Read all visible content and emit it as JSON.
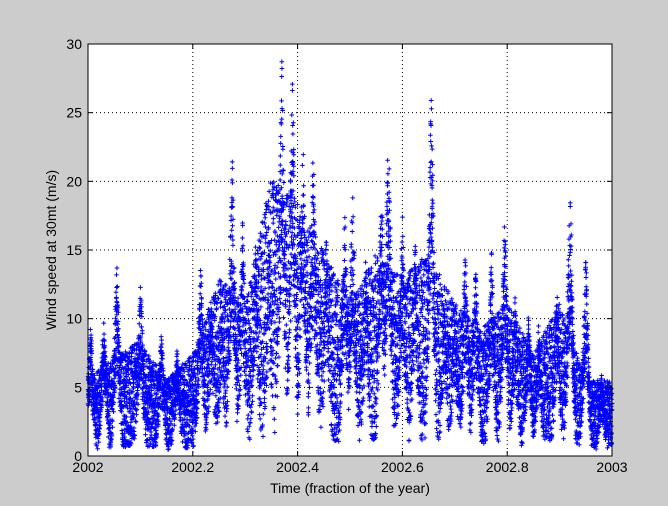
{
  "window": {
    "background": "#cccccc"
  },
  "chart_data": {
    "type": "scatter",
    "title": "",
    "xlabel": "Time (fraction of the year)",
    "ylabel": "Wind speed at 30mt (m/s)",
    "xlim": [
      2002,
      2003
    ],
    "ylim": [
      0,
      30
    ],
    "xticks": [
      2002,
      2002.2,
      2002.4,
      2002.6,
      2002.8,
      2003
    ],
    "xtick_labels": [
      "2002",
      "2002.2",
      "2002.4",
      "2002.6",
      "2002.8",
      "2003"
    ],
    "yticks": [
      0,
      5,
      10,
      15,
      20,
      25,
      30
    ],
    "ytick_labels": [
      "0",
      "5",
      "10",
      "15",
      "20",
      "25",
      "30"
    ],
    "grid": true,
    "marker": "+",
    "marker_color": "#0000ff",
    "plot_background": "#ffffff",
    "series": [
      {
        "name": "",
        "samples_per_day": 24,
        "typical_level": [
          [
            2002.0,
            3.0
          ],
          [
            2002.05,
            4.0
          ],
          [
            2002.1,
            4.5
          ],
          [
            2002.15,
            3.0
          ],
          [
            2002.2,
            4.0
          ],
          [
            2002.25,
            7.0
          ],
          [
            2002.3,
            6.0
          ],
          [
            2002.35,
            11.0
          ],
          [
            2002.4,
            10.0
          ],
          [
            2002.45,
            8.0
          ],
          [
            2002.5,
            6.0
          ],
          [
            2002.55,
            8.0
          ],
          [
            2002.6,
            7.0
          ],
          [
            2002.65,
            8.0
          ],
          [
            2002.7,
            6.0
          ],
          [
            2002.75,
            5.0
          ],
          [
            2002.8,
            6.0
          ],
          [
            2002.85,
            4.0
          ],
          [
            2002.9,
            6.0
          ],
          [
            2002.95,
            3.0
          ],
          [
            2003.0,
            3.0
          ]
        ],
        "gust_peaks": [
          [
            2002.005,
            9.8
          ],
          [
            2002.03,
            10.2
          ],
          [
            2002.055,
            14.2
          ],
          [
            2002.1,
            13.2
          ],
          [
            2002.14,
            9.0
          ],
          [
            2002.17,
            8.0
          ],
          [
            2002.215,
            14.3
          ],
          [
            2002.235,
            11.5
          ],
          [
            2002.255,
            11.5
          ],
          [
            2002.275,
            22.7
          ],
          [
            2002.295,
            17.0
          ],
          [
            2002.32,
            15.8
          ],
          [
            2002.345,
            16.4
          ],
          [
            2002.37,
            29.4
          ],
          [
            2002.39,
            28.8
          ],
          [
            2002.41,
            24.0
          ],
          [
            2002.43,
            23.5
          ],
          [
            2002.455,
            16.6
          ],
          [
            2002.49,
            17.9
          ],
          [
            2002.505,
            20.2
          ],
          [
            2002.53,
            14.8
          ],
          [
            2002.56,
            20.2
          ],
          [
            2002.573,
            24.7
          ],
          [
            2002.6,
            18.1
          ],
          [
            2002.625,
            16.5
          ],
          [
            2002.655,
            27.5
          ],
          [
            2002.68,
            11.5
          ],
          [
            2002.7,
            11.4
          ],
          [
            2002.72,
            15.3
          ],
          [
            2002.74,
            14.2
          ],
          [
            2002.77,
            15.0
          ],
          [
            2002.795,
            18.0
          ],
          [
            2002.815,
            11.6
          ],
          [
            2002.84,
            11.0
          ],
          [
            2002.86,
            10.0
          ],
          [
            2002.895,
            12.4
          ],
          [
            2002.92,
            20.0
          ],
          [
            2002.95,
            14.8
          ],
          [
            2002.98,
            6.0
          ]
        ]
      }
    ]
  }
}
